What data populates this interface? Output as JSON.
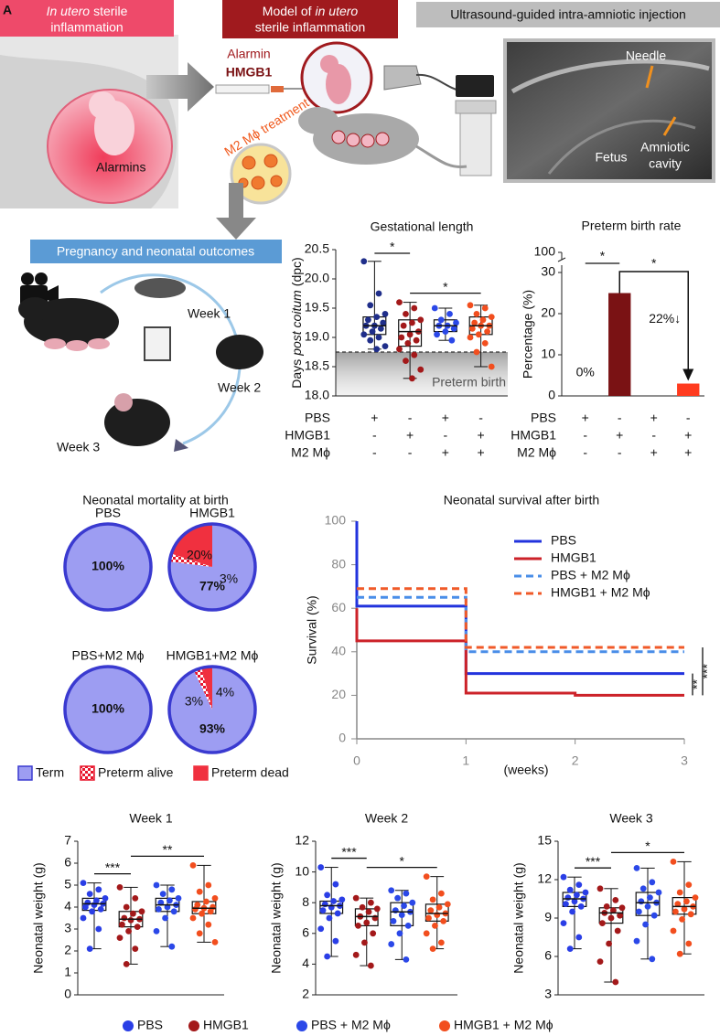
{
  "panel_label": "A",
  "diagram": {
    "box1": {
      "italic": "In utero",
      "text": "sterile",
      "line2": "inflammation"
    },
    "alarmins": "Alarmins",
    "box2": {
      "text": "Model of",
      "italic": "in utero",
      "line2": "sterile inflammation"
    },
    "alarmin": "Alarmin",
    "hmgb1": "HMGB1",
    "treatment": "M2 Mϕ treatment",
    "box3": "Ultrasound-guided intra-amniotic injection",
    "needle": "Needle",
    "fetus": "Fetus",
    "amniotic": "Amniotic",
    "cavity": "cavity",
    "box4": "Pregnancy and neonatal outcomes",
    "week1": "Week 1",
    "week2": "Week 2",
    "week3": "Week 3"
  },
  "chart_data": [
    {
      "type": "box",
      "title": "Gestational length",
      "ylabel": {
        "start": "Days",
        "italic": "post coitum",
        "end": "(dpc)"
      },
      "ylim": [
        18,
        20.5
      ],
      "yticks": [
        {
          "value": 18,
          "label": "18.0"
        },
        {
          "value": 18.5,
          "label": "18.5"
        },
        {
          "value": 19,
          "label": "19.0"
        },
        {
          "value": 19.5,
          "label": "19.5"
        },
        {
          "value": 20,
          "label": "20.0"
        },
        {
          "value": 20.5,
          "label": "20.5"
        }
      ],
      "threshold": 18.75,
      "threshold_label": "Preterm birth",
      "groups": [
        {
          "color": "#1f2e8a",
          "min": 18.8,
          "q1": 19.05,
          "median": 19.2,
          "q3": 19.35,
          "max": 20.3,
          "points": [
            20.3,
            19.75,
            19.55,
            19.4,
            19.35,
            19.3,
            19.25,
            19.2,
            19.2,
            19.15,
            19.1,
            19.05,
            19.0,
            18.95,
            18.85,
            18.8
          ]
        },
        {
          "color": "#a3191a",
          "min": 18.3,
          "q1": 18.85,
          "median": 19.1,
          "q3": 19.3,
          "max": 19.6,
          "points": [
            19.6,
            19.5,
            19.4,
            19.3,
            19.25,
            19.2,
            19.1,
            19.05,
            19.0,
            18.95,
            18.9,
            18.8,
            18.7,
            18.6,
            18.45,
            18.3
          ]
        },
        {
          "color": "#2b48e8",
          "min": 18.95,
          "q1": 19.1,
          "median": 19.2,
          "q3": 19.3,
          "max": 19.5,
          "points": [
            19.5,
            19.4,
            19.3,
            19.25,
            19.2,
            19.2,
            19.15,
            19.1,
            19.05,
            18.95
          ]
        },
        {
          "color": "#f24e1e",
          "min": 18.5,
          "q1": 19.05,
          "median": 19.2,
          "q3": 19.35,
          "max": 19.55,
          "points": [
            19.55,
            19.5,
            19.4,
            19.35,
            19.3,
            19.25,
            19.2,
            19.2,
            19.15,
            19.1,
            19.05,
            19.0,
            18.9,
            18.75,
            18.5
          ]
        }
      ],
      "brackets": [
        {
          "from": 0,
          "to": 1,
          "label": "*"
        },
        {
          "from": 1,
          "to": 3,
          "label": "*"
        }
      ],
      "conditions": [
        {
          "name": "PBS",
          "signs": [
            "+",
            "-",
            "+",
            "-"
          ]
        },
        {
          "name": "HMGB1",
          "signs": [
            "-",
            "+",
            "-",
            "+"
          ]
        },
        {
          "name": "M2 Mϕ",
          "signs": [
            "-",
            "-",
            "+",
            "+"
          ]
        }
      ]
    },
    {
      "type": "bar",
      "title": "Preterm birth rate",
      "ylabel": "Percentage (%)",
      "values": [
        0,
        25,
        0,
        3
      ],
      "colors": [
        "#1f2e8a",
        "#7a1214",
        "#2b48e8",
        "#ff3b1f"
      ],
      "ylim": [
        0,
        30
      ],
      "yticks": [
        0,
        10,
        20,
        30
      ],
      "break_ticks": [
        100
      ],
      "annotations": [
        "0%",
        "22%↓"
      ],
      "brackets": [
        {
          "from": 0,
          "to": 1,
          "label": "*"
        },
        {
          "from": 1,
          "to": 3,
          "label": "*",
          "arrow": true
        }
      ],
      "conditions": [
        {
          "name": "PBS",
          "signs": [
            "+",
            "-",
            "+",
            "-"
          ]
        },
        {
          "name": "HMGB1",
          "signs": [
            "-",
            "+",
            "-",
            "+"
          ]
        },
        {
          "name": "M2 Mϕ",
          "signs": [
            "-",
            "-",
            "+",
            "+"
          ]
        }
      ]
    },
    {
      "type": "pie",
      "title": "Neonatal mortality at birth",
      "labels": [
        "Term",
        "Preterm alive",
        "Preterm dead"
      ],
      "colors": [
        "#9d9df2",
        "#e8152b",
        "#f0303f"
      ],
      "pattern": [
        "solid",
        "checker",
        "solid"
      ],
      "pies": [
        {
          "name": "PBS",
          "values": [
            100,
            0,
            0
          ],
          "value_labels": [
            "100%",
            null,
            null
          ]
        },
        {
          "name": "HMGB1",
          "values": [
            77,
            3,
            20
          ],
          "value_labels": [
            "77%",
            "3%",
            "20%"
          ]
        },
        {
          "name": "PBS+M2 Mϕ",
          "values": [
            100,
            0,
            0
          ],
          "value_labels": [
            "100%",
            null,
            null
          ]
        },
        {
          "name": "HMGB1+M2 Mϕ",
          "values": [
            93,
            3,
            4
          ],
          "value_labels": [
            "93%",
            "3%",
            "4%"
          ]
        }
      ]
    },
    {
      "type": "line",
      "step": true,
      "title": "Neonatal survival after birth",
      "ylabel": "Survival (%)",
      "xlabel": "(weeks)",
      "x": [
        0,
        0,
        1,
        2,
        3
      ],
      "xlim": [
        0,
        3
      ],
      "xticks": [
        0,
        1,
        2,
        3
      ],
      "ylim": [
        0,
        100
      ],
      "yticks": [
        0,
        20,
        40,
        60,
        80,
        100
      ],
      "series": [
        {
          "name": "PBS",
          "color": "#2233dd",
          "dashed": false,
          "values": [
            100,
            61,
            30,
            30,
            30
          ]
        },
        {
          "name": "HMGB1",
          "color": "#cc2229",
          "dashed": false,
          "values": [
            60,
            45,
            21,
            20,
            20
          ]
        },
        {
          "name": "PBS + M2 Mϕ",
          "color": "#4a8ee8",
          "dashed": true,
          "values": [
            65,
            65,
            40,
            40,
            40
          ]
        },
        {
          "name": "HMGB1 + M2 Mϕ",
          "color": "#f05a28",
          "dashed": true,
          "values": [
            69,
            69,
            42,
            42,
            42
          ]
        }
      ],
      "significance": [
        "**",
        "***"
      ]
    },
    {
      "type": "box",
      "title": "Week 1",
      "ylabel": "Neonatal weight (g)",
      "ylim": [
        0,
        7
      ],
      "yticks": [
        0,
        1,
        2,
        3,
        4,
        5,
        6,
        7
      ],
      "groups": [
        {
          "color": "#2a3ee6",
          "min": 2.1,
          "q1": 3.85,
          "median": 4.15,
          "q3": 4.4,
          "max": 5.1,
          "points": [
            5.1,
            4.8,
            4.6,
            4.4,
            4.3,
            4.2,
            4.15,
            4.1,
            4.0,
            3.9,
            3.8,
            3.5,
            3.0,
            2.1
          ]
        },
        {
          "color": "#a3191a",
          "min": 1.4,
          "q1": 3.1,
          "median": 3.45,
          "q3": 3.8,
          "max": 4.9,
          "points": [
            4.9,
            4.4,
            4.0,
            3.8,
            3.7,
            3.5,
            3.45,
            3.4,
            3.2,
            3.1,
            2.9,
            2.6,
            2.1,
            1.4
          ]
        },
        {
          "color": "#2b48e8",
          "min": 2.2,
          "q1": 3.8,
          "median": 4.1,
          "q3": 4.4,
          "max": 5.0,
          "points": [
            5.0,
            4.8,
            4.6,
            4.4,
            4.3,
            4.2,
            4.1,
            4.0,
            3.9,
            3.8,
            3.5,
            2.9,
            2.2
          ]
        },
        {
          "color": "#f24e1e",
          "min": 2.4,
          "q1": 3.7,
          "median": 3.95,
          "q3": 4.25,
          "max": 5.9,
          "points": [
            5.9,
            5.0,
            4.7,
            4.4,
            4.25,
            4.1,
            4.0,
            3.95,
            3.9,
            3.8,
            3.7,
            3.5,
            3.2,
            2.8,
            2.4
          ]
        }
      ],
      "brackets": [
        {
          "from": 0,
          "to": 1,
          "label": "***"
        },
        {
          "from": 1,
          "to": 3,
          "label": "**"
        }
      ]
    },
    {
      "type": "box",
      "title": "Week 2",
      "ylabel": "Neonatal weight (g)",
      "ylim": [
        2,
        12
      ],
      "yticks": [
        2,
        4,
        6,
        8,
        10,
        12
      ],
      "groups": [
        {
          "color": "#2a3ee6",
          "min": 4.5,
          "q1": 7.3,
          "median": 7.8,
          "q3": 8.1,
          "max": 10.3,
          "points": [
            10.3,
            9.2,
            8.5,
            8.2,
            8.1,
            7.9,
            7.8,
            7.7,
            7.5,
            7.3,
            7.0,
            6.3,
            5.5,
            4.5
          ]
        },
        {
          "color": "#a3191a",
          "min": 3.9,
          "q1": 6.5,
          "median": 7.1,
          "q3": 7.6,
          "max": 8.3,
          "points": [
            8.3,
            8.0,
            7.7,
            7.6,
            7.4,
            7.1,
            7.0,
            6.7,
            6.5,
            6.0,
            5.4,
            4.6,
            3.9
          ]
        },
        {
          "color": "#2b48e8",
          "min": 4.3,
          "q1": 6.5,
          "median": 7.4,
          "q3": 8.0,
          "max": 8.8,
          "points": [
            8.8,
            8.6,
            8.3,
            8.0,
            7.8,
            7.5,
            7.4,
            7.2,
            6.8,
            6.5,
            6.0,
            5.3,
            4.3
          ]
        },
        {
          "color": "#f24e1e",
          "min": 5.0,
          "q1": 6.8,
          "median": 7.3,
          "q3": 7.9,
          "max": 9.7,
          "points": [
            9.7,
            8.6,
            8.2,
            7.9,
            7.7,
            7.5,
            7.3,
            7.2,
            7.0,
            6.8,
            6.5,
            6.0,
            5.4,
            5.0
          ]
        }
      ],
      "brackets": [
        {
          "from": 0,
          "to": 1,
          "label": "***"
        },
        {
          "from": 1,
          "to": 3,
          "label": "*"
        }
      ]
    },
    {
      "type": "box",
      "title": "Week 3",
      "ylabel": "Neonatal weight (g)",
      "ylim": [
        3,
        15
      ],
      "yticks": [
        3,
        6,
        9,
        12,
        15
      ],
      "groups": [
        {
          "color": "#2a3ee6",
          "min": 6.6,
          "q1": 9.9,
          "median": 10.5,
          "q3": 11.0,
          "max": 12.2,
          "points": [
            12.2,
            11.6,
            11.2,
            11.0,
            10.8,
            10.6,
            10.5,
            10.3,
            10.1,
            9.9,
            9.5,
            8.6,
            7.5,
            6.6
          ]
        },
        {
          "color": "#a3191a",
          "min": 4.0,
          "q1": 8.6,
          "median": 9.4,
          "q3": 9.8,
          "max": 11.3,
          "points": [
            11.3,
            10.4,
            9.9,
            9.8,
            9.6,
            9.4,
            9.2,
            9.0,
            8.6,
            8.0,
            7.0,
            5.6,
            4.0
          ]
        },
        {
          "color": "#2b48e8",
          "min": 5.8,
          "q1": 9.2,
          "median": 10.2,
          "q3": 11.0,
          "max": 12.9,
          "points": [
            12.9,
            11.8,
            11.3,
            11.0,
            10.6,
            10.3,
            10.2,
            9.9,
            9.5,
            9.2,
            8.5,
            7.2,
            5.8
          ]
        },
        {
          "color": "#f24e1e",
          "min": 6.2,
          "q1": 9.3,
          "median": 9.9,
          "q3": 10.6,
          "max": 13.4,
          "points": [
            13.4,
            11.6,
            11.0,
            10.6,
            10.3,
            10.1,
            9.9,
            9.7,
            9.5,
            9.3,
            8.9,
            8.0,
            7.0,
            6.2
          ]
        }
      ],
      "brackets": [
        {
          "from": 0,
          "to": 1,
          "label": "***"
        },
        {
          "from": 1,
          "to": 3,
          "label": "*"
        }
      ]
    }
  ],
  "group_legend": [
    {
      "name": "PBS",
      "color": "#2a3ee6"
    },
    {
      "name": "HMGB1",
      "color": "#a3191a"
    },
    {
      "name": "PBS + M2 Mϕ",
      "color": "#2b48e8"
    },
    {
      "name": "HMGB1 + M2 Mϕ",
      "color": "#f24e1e"
    }
  ]
}
